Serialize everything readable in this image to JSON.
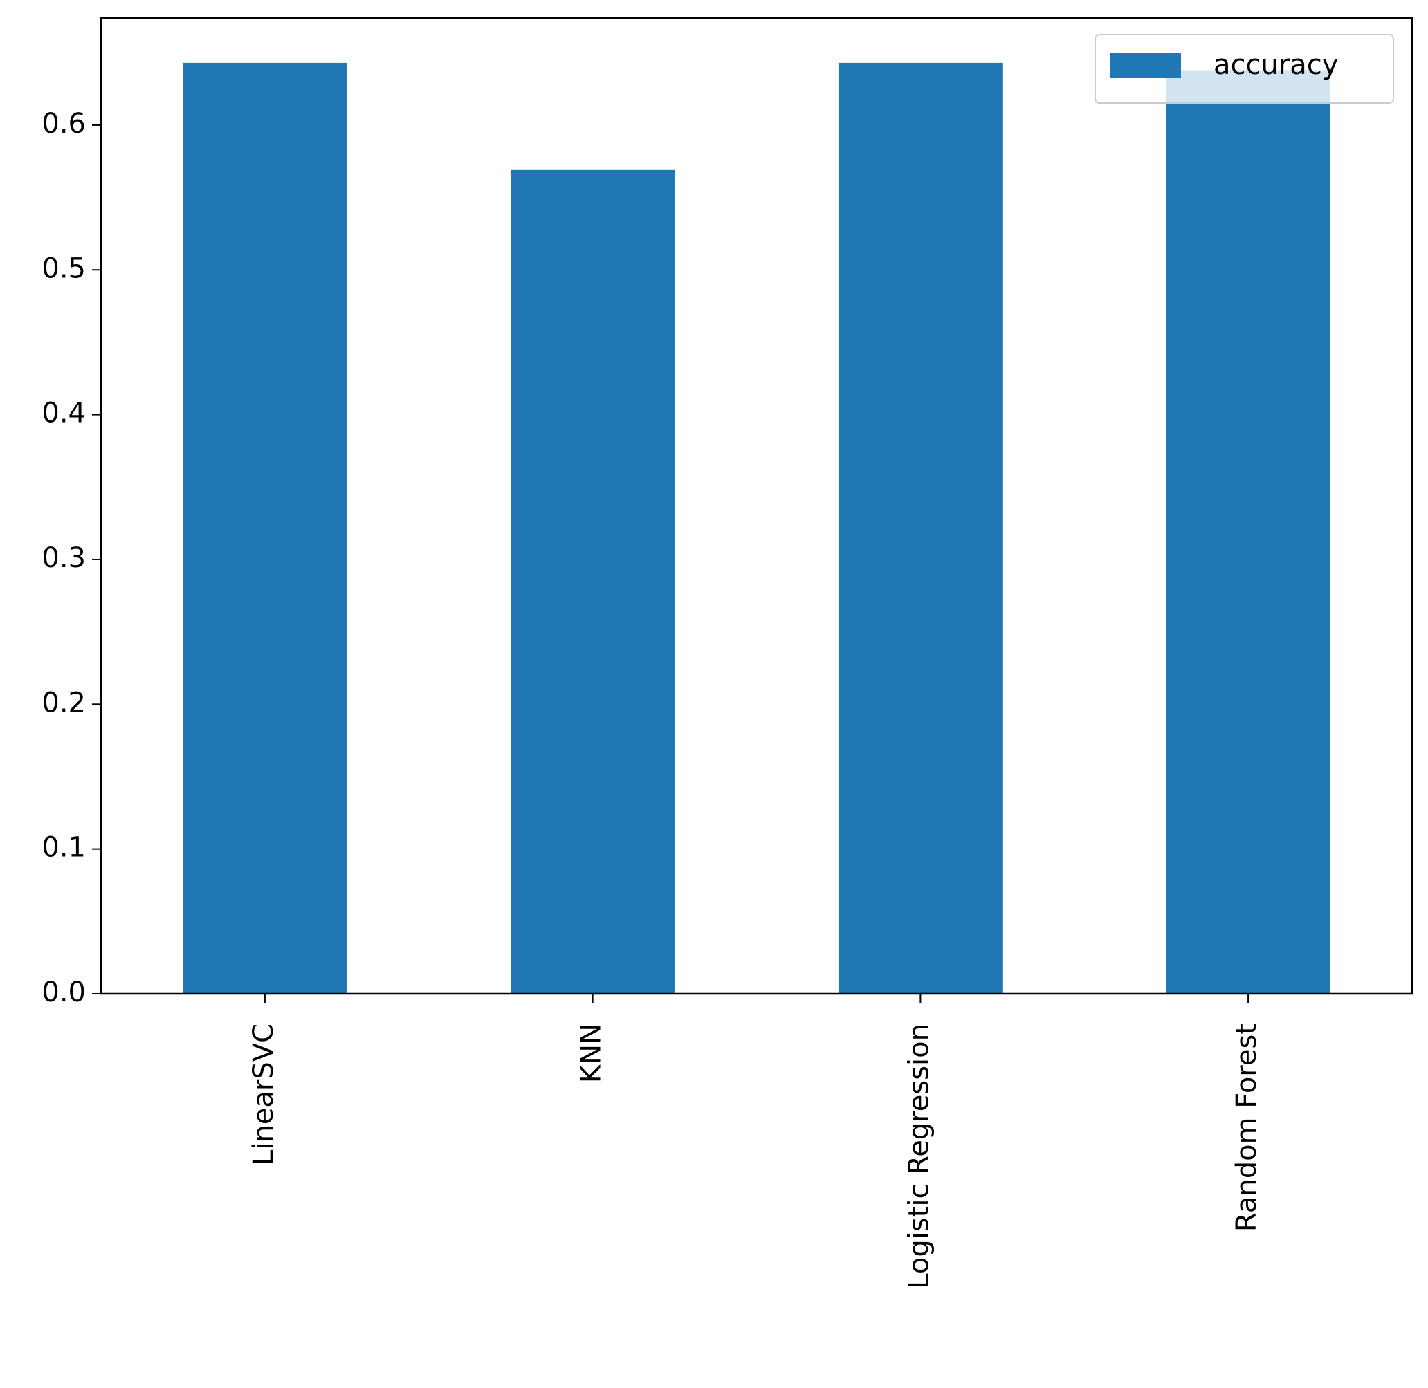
{
  "chart_data": {
    "type": "bar",
    "categories": [
      "LinearSVC",
      "KNN",
      "Logistic Regression",
      "Random Forest"
    ],
    "series": [
      {
        "name": "accuracy",
        "color": "#1f77b4",
        "values": [
          0.643,
          0.569,
          0.643,
          0.638
        ]
      }
    ],
    "ylim": [
      0,
      0.674
    ],
    "yticks": [
      {
        "value": 0,
        "label": "0.0"
      },
      0.1,
      0.2,
      0.3,
      0.4,
      0.5,
      0.6
    ],
    "grid": false,
    "legend": "upper right"
  }
}
